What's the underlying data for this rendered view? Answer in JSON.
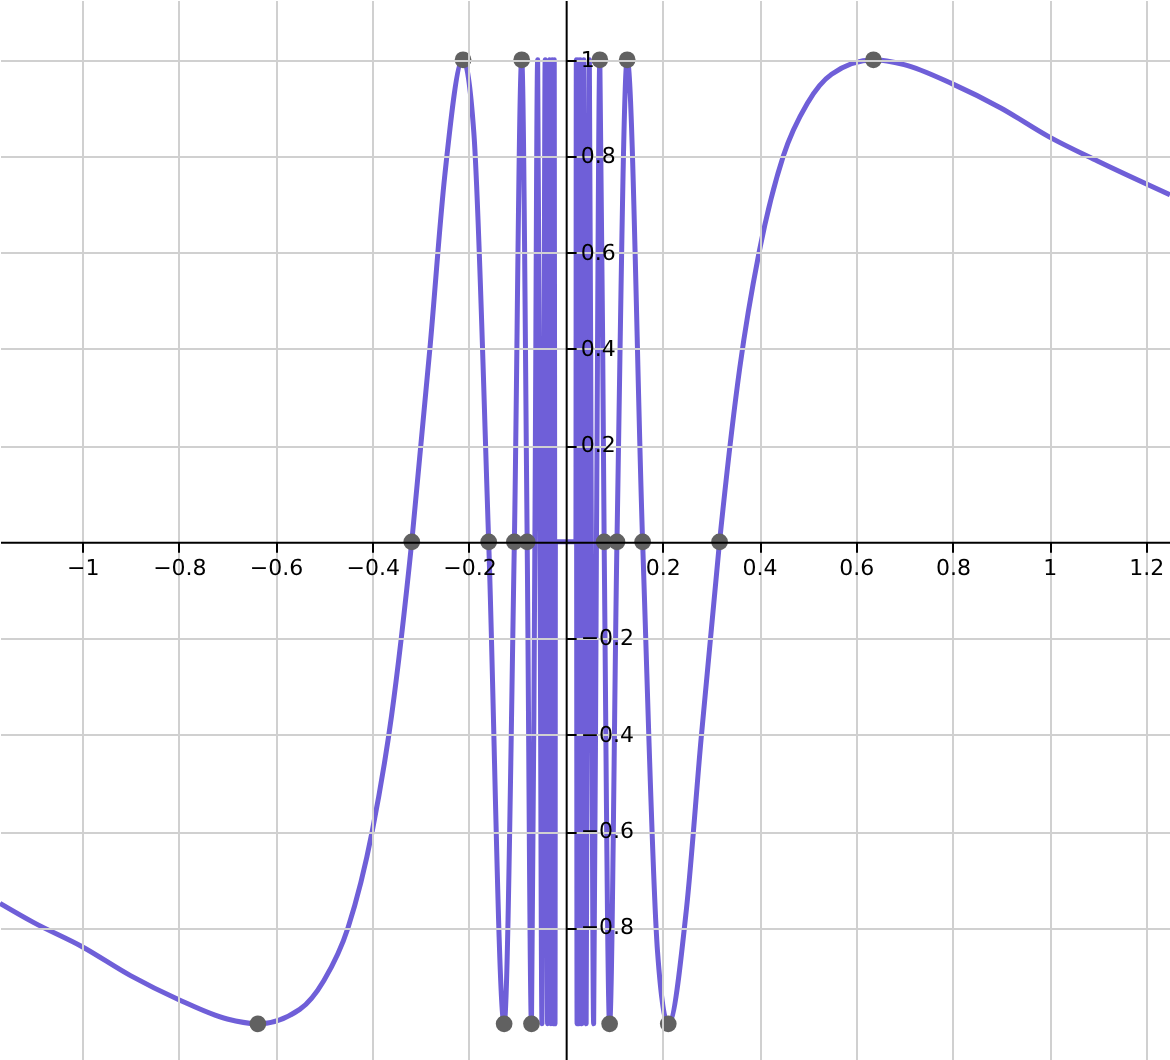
{
  "chart_data": {
    "type": "line",
    "xlim": [
      -1.17,
      1.25
    ],
    "ylim": [
      -1.075,
      1.124
    ],
    "xticks": [
      -1,
      -0.8,
      -0.6,
      -0.4,
      -0.2,
      0.2,
      0.4,
      0.6,
      0.8,
      1,
      1.2
    ],
    "yticks": [
      -0.8,
      -0.6,
      -0.4,
      -0.2,
      0.2,
      0.4,
      0.6,
      0.8,
      1
    ],
    "grid": true,
    "series": [
      {
        "color": "#6f5fd8",
        "marker": "none",
        "x": [
          -1.17,
          -1.1,
          -1.0,
          -0.9,
          -0.8,
          -0.7,
          -0.6366,
          -0.55,
          -0.5,
          -0.45,
          -0.4,
          -0.36,
          -0.3183,
          -0.28,
          -0.25,
          -0.2122,
          -0.19,
          -0.1592,
          -0.1273,
          -0.1061,
          -0.0909,
          -0.0796,
          -0.0707,
          -0.0637,
          -0.0579,
          -0.0531,
          -0.049,
          -0.0455,
          -0.0424,
          -0.0398,
          -0.0374,
          -0.0354,
          -0.0335,
          -0.0318,
          -0.0303,
          -0.0289,
          -0.0277,
          -0.0265,
          -0.0255,
          -0.0245,
          -0.0236,
          -0.0227,
          -0.022,
          -0.0212,
          0.0212,
          0.022,
          0.0227,
          0.0236,
          0.0245,
          0.0255,
          0.0265,
          0.0277,
          0.0289,
          0.0303,
          0.0318,
          0.0335,
          0.0354,
          0.0374,
          0.0398,
          0.0424,
          0.0455,
          0.049,
          0.0531,
          0.0579,
          0.0637,
          0.0707,
          0.0796,
          0.0909,
          0.1061,
          0.1273,
          0.1592,
          0.19,
          0.2122,
          0.25,
          0.28,
          0.3183,
          0.36,
          0.4,
          0.45,
          0.5,
          0.55,
          0.6366,
          0.7,
          0.8,
          0.9,
          1.0,
          1.1,
          1.25
        ],
        "values": [
          -0.75,
          -0.79,
          -0.84,
          -0.9,
          -0.95,
          -0.99,
          -1,
          -0.97,
          -0.91,
          -0.8,
          -0.6,
          -0.36,
          0,
          0.41,
          0.76,
          1,
          0.85,
          0,
          -1,
          0,
          1,
          0,
          -1,
          0,
          1,
          0,
          -1,
          0,
          1,
          0,
          -1,
          0,
          1,
          0,
          -1,
          0,
          1,
          0,
          -1,
          0,
          1,
          0,
          -1,
          0,
          0,
          1,
          0,
          -1,
          0,
          1,
          0,
          -1,
          0,
          1,
          0,
          -1,
          0,
          1,
          0,
          -1,
          0,
          1,
          0,
          -1,
          0,
          1,
          0,
          -1,
          0,
          1,
          0,
          -0.85,
          -1,
          -0.76,
          -0.41,
          0,
          0.36,
          0.6,
          0.8,
          0.91,
          0.97,
          1,
          0.99,
          0.95,
          0.9,
          0.84,
          0.79,
          0.72
        ]
      },
      {
        "type": "scatter",
        "color": "#616161",
        "marker": "circle",
        "x": [
          -0.6366,
          -0.3183,
          -0.2122,
          -0.1592,
          -0.1273,
          -0.1061,
          -0.0909,
          -0.0796,
          -0.0707,
          0.0707,
          0.0796,
          0.0909,
          0.1061,
          0.1273,
          0.1592,
          0.2122,
          0.3183,
          0.6366
        ],
        "values": [
          -1,
          0,
          1,
          0,
          -1,
          0,
          1,
          0,
          -1,
          1,
          0,
          -1,
          0,
          1,
          0,
          -1,
          0,
          1
        ]
      }
    ]
  }
}
